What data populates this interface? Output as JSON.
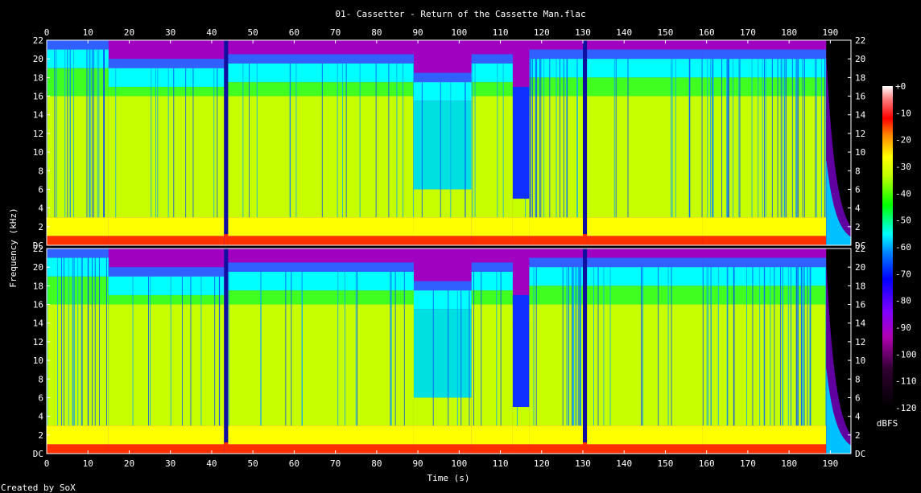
{
  "chart_data": {
    "type": "heatmap",
    "title": "01- Cassetter - Return of the Cassette Man.flac",
    "xlabel": "Time (s)",
    "ylabel": "Frequency (kHz)",
    "credit": "Created by SoX",
    "colorbar_label": "dBFS",
    "xlim": [
      0,
      195
    ],
    "ylim": [
      0,
      22
    ],
    "x_ticks": [
      "0",
      "10",
      "20",
      "30",
      "40",
      "50",
      "60",
      "70",
      "80",
      "90",
      "100",
      "110",
      "120",
      "130",
      "140",
      "150",
      "160",
      "170",
      "180",
      "190"
    ],
    "y_ticks": [
      "DC",
      "2",
      "4",
      "6",
      "8",
      "10",
      "12",
      "14",
      "16",
      "18",
      "20",
      "22"
    ],
    "colorbar_ticks": [
      "+0",
      "-10",
      "-20",
      "-30",
      "-40",
      "-50",
      "-60",
      "-70",
      "-80",
      "-90",
      "-100",
      "-110",
      "-120"
    ],
    "channels": [
      "left",
      "right"
    ],
    "colorbar_range_dbfs": [
      -120,
      0
    ],
    "colors": {
      "background": "#000000",
      "loud": "#ff2000",
      "mid_high": "#ffff00",
      "mid": "#00ff00",
      "low": "#00ffff",
      "very_low": "#0000ff",
      "floor": "#ff00ff",
      "silence": "#000000"
    },
    "segments": [
      {
        "start": 0,
        "end": 15,
        "cutoff_khz": 21.0,
        "character": "sparse-transients"
      },
      {
        "start": 15,
        "end": 43,
        "cutoff_khz": 19.0,
        "character": "dense-broadband"
      },
      {
        "start": 43,
        "end": 44,
        "cutoff_khz": 16.0,
        "character": "break"
      },
      {
        "start": 44,
        "end": 89,
        "cutoff_khz": 19.5,
        "character": "dense-broadband"
      },
      {
        "start": 89,
        "end": 103,
        "cutoff_khz": 17.5,
        "character": "filtered"
      },
      {
        "start": 103,
        "end": 113,
        "cutoff_khz": 19.5,
        "character": "dense-broadband"
      },
      {
        "start": 113,
        "end": 117,
        "cutoff_khz": 16.0,
        "character": "filter-sweep"
      },
      {
        "start": 117,
        "end": 130,
        "cutoff_khz": 20.0,
        "character": "sparse-transients"
      },
      {
        "start": 130,
        "end": 131,
        "cutoff_khz": 9.0,
        "character": "break"
      },
      {
        "start": 131,
        "end": 159,
        "cutoff_khz": 20.0,
        "character": "dense-broadband"
      },
      {
        "start": 159,
        "end": 189,
        "cutoff_khz": 20.0,
        "character": "sparse-transients"
      },
      {
        "start": 189,
        "end": 195,
        "cutoff_khz": 2.0,
        "character": "fade-out"
      }
    ]
  }
}
